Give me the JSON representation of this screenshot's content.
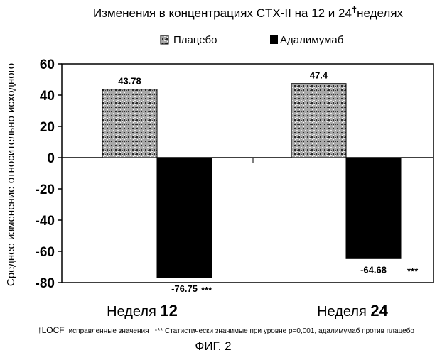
{
  "chart_data": {
    "type": "bar",
    "title": "Изменения в концентрациях CTX-II на 12 и 24",
    "title_dagger": "†",
    "title_suffix": "неделях",
    "ylabel": "Среднее изменение относительно исходного",
    "xlabel": "",
    "ylim": [
      -80,
      60
    ],
    "yticks": [
      60,
      40,
      20,
      0,
      -20,
      -40,
      -60,
      -80
    ],
    "categories": [
      {
        "prefix": "Неделя",
        "number": "12"
      },
      {
        "prefix": "Неделя",
        "number": "24"
      }
    ],
    "series": [
      {
        "name": "Плацебо",
        "values": [
          43.78,
          47.4
        ],
        "labels": [
          "43.78",
          "47.4"
        ],
        "color": "#9a9a9a",
        "pattern": "stippled"
      },
      {
        "name": "Адалимумаб",
        "values": [
          -76.75,
          -64.68
        ],
        "labels": [
          "-76.75",
          "-64.68"
        ],
        "color": "#000000",
        "pattern": "solid"
      }
    ],
    "annotations": [
      "***",
      "***"
    ],
    "legend_position": "top-center",
    "grid": false
  },
  "footnote": {
    "dagger": "†",
    "locf": "LOCF",
    "text1": "исправленные значения",
    "text2": "*** Статистически значимые при уровне p=0,001, адалимумаб против плацебо"
  },
  "figure_label": "ФИГ. 2"
}
